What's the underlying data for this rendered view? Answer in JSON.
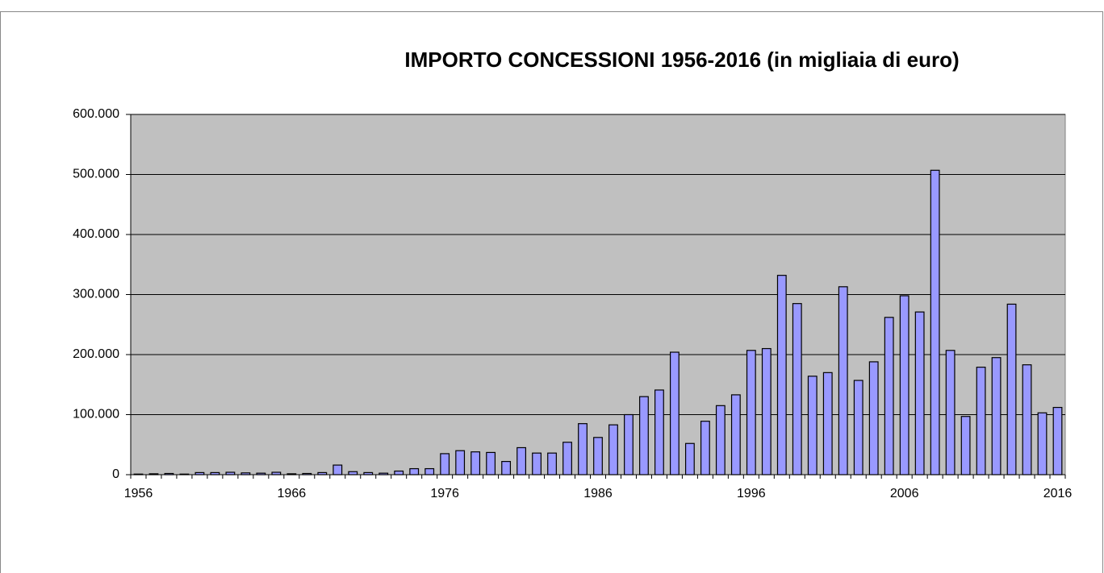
{
  "chart_data": {
    "type": "bar",
    "title": "IMPORTO CONCESSIONI 1956-2016  (in migliaia di euro)",
    "categories": [
      "1956",
      null,
      null,
      null,
      null,
      null,
      null,
      null,
      null,
      null,
      "1966",
      null,
      null,
      null,
      null,
      null,
      null,
      null,
      null,
      null,
      "1976",
      null,
      null,
      null,
      null,
      null,
      null,
      null,
      null,
      null,
      "1986",
      null,
      null,
      null,
      null,
      null,
      null,
      null,
      null,
      null,
      "1996",
      null,
      null,
      null,
      null,
      null,
      null,
      null,
      null,
      null,
      "2006",
      null,
      null,
      null,
      null,
      null,
      null,
      null,
      null,
      null,
      "2016"
    ],
    "values": [
      1000,
      1500,
      2000,
      1000,
      3500,
      3500,
      4000,
      3000,
      2500,
      4000,
      1500,
      2000,
      3500,
      16000,
      5000,
      3500,
      2500,
      6000,
      10000,
      10000,
      35000,
      40000,
      38000,
      37000,
      22000,
      45000,
      36000,
      36000,
      54000,
      85000,
      62000,
      83000,
      100000,
      130000,
      141000,
      204000,
      52000,
      89000,
      115000,
      133000,
      207000,
      210000,
      332000,
      285000,
      164000,
      170000,
      313000,
      157000,
      188000,
      262000,
      298000,
      271000,
      507000,
      207000,
      97000,
      179000,
      195000,
      284000,
      183000,
      103000,
      112000
    ],
    "color": "#9999ff",
    "ylim": [
      0,
      600000
    ],
    "yticks": [
      0,
      {
        "value": 100000,
        "label": "100.000"
      },
      {
        "value": 200000,
        "label": "200.000"
      },
      {
        "value": 300000,
        "label": "300.000"
      },
      {
        "value": 400000,
        "label": "400.000"
      },
      {
        "value": 500000,
        "label": "500.000"
      },
      {
        "value": 600000,
        "label": "600.000"
      }
    ],
    "grid": true
  }
}
